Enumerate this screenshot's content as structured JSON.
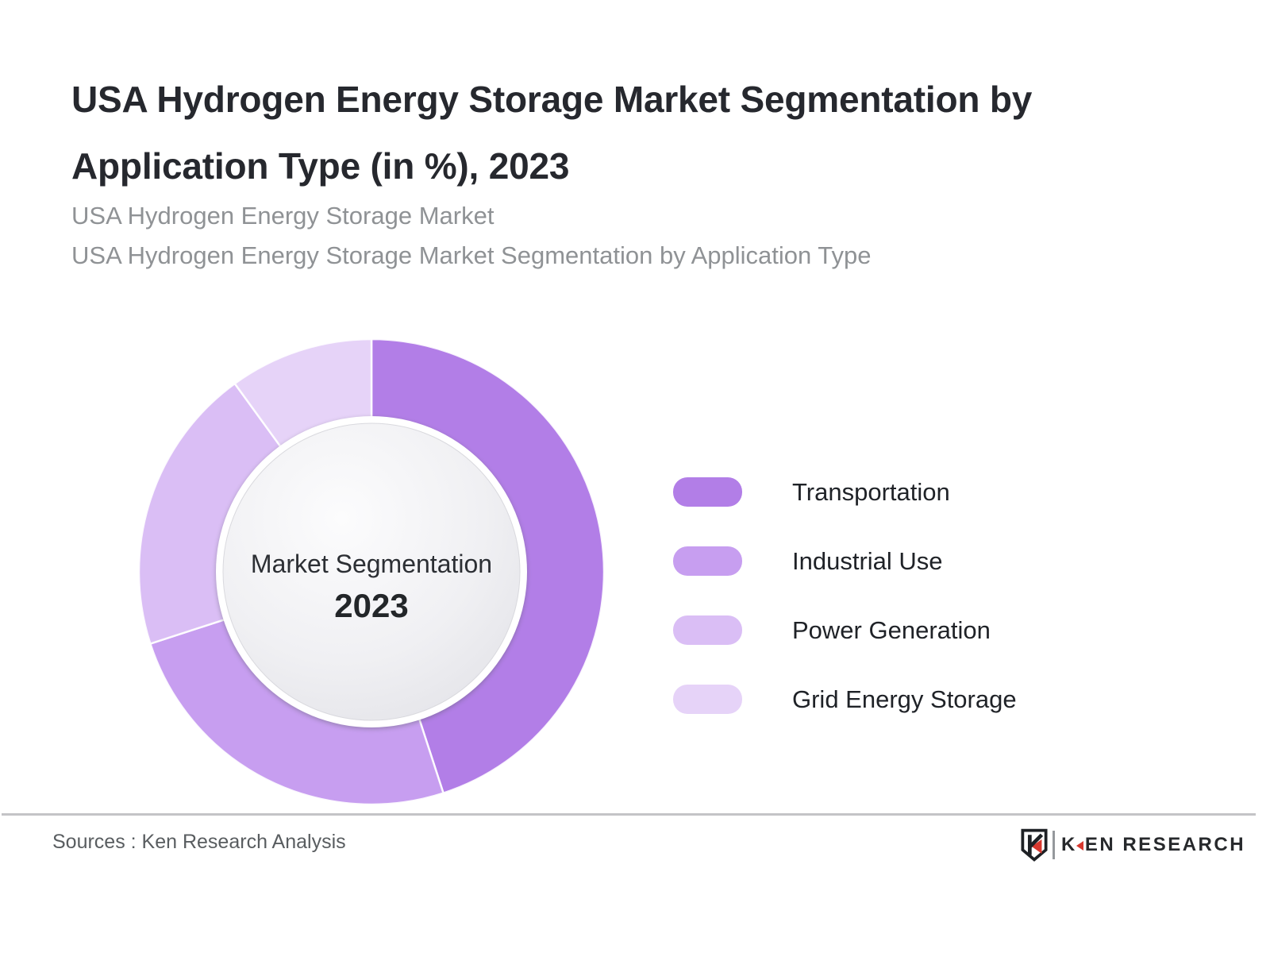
{
  "header": {
    "title_lines": [
      "USA Hydrogen Energy Storage Market Segmentation by",
      "Application Type (in %), 2023"
    ],
    "subtitle_lines": [
      "USA Hydrogen Energy Storage Market",
      "USA Hydrogen Energy Storage Market Segmentation by Application Type"
    ]
  },
  "chart_data": {
    "type": "pie",
    "subtype": "donut",
    "title": "USA Hydrogen Energy Storage Market Segmentation by Application Type (in %), 2023",
    "categories": [
      "Transportation",
      "Industrial Use",
      "Power Generation",
      "Grid Energy Storage"
    ],
    "values": [
      45,
      25,
      20,
      10
    ],
    "unit": "%",
    "colors": [
      "#b27ee7",
      "#c79ef0",
      "#dabef5",
      "#e6d3f8"
    ],
    "start_angle_deg": 0,
    "direction": "clockwise",
    "legend_position": "right",
    "center_label": "Market Segmentation",
    "center_year": "2023"
  },
  "footer": {
    "sources_label": "Sources : Ken Research Analysis",
    "brand": {
      "logo_text_k": "K",
      "logo_text_rest": "EN RESEARCH",
      "brand_red": "#d8382f"
    }
  }
}
